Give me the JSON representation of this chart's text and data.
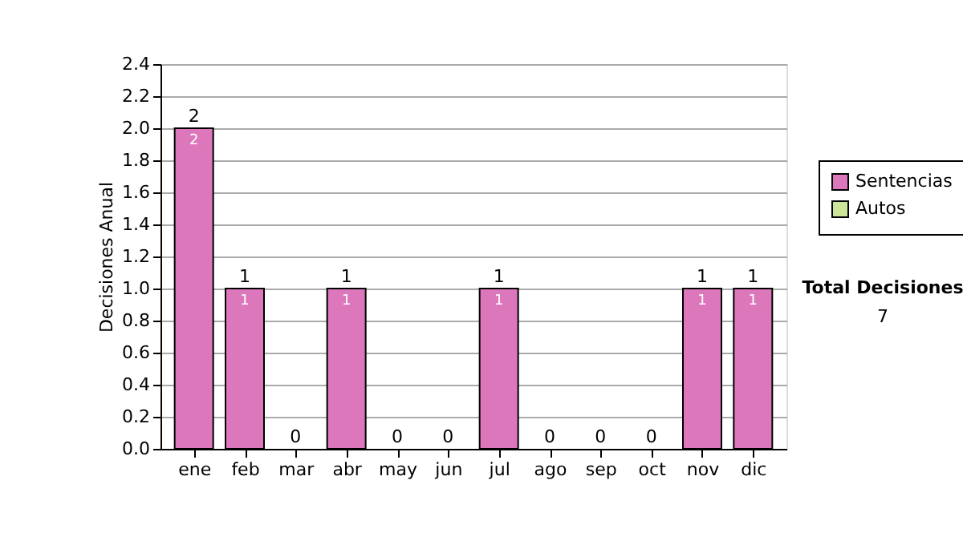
{
  "chart_data": {
    "type": "bar",
    "stacked": true,
    "ylabel": "Decisiones Anual",
    "categories": [
      "ene",
      "feb",
      "mar",
      "abr",
      "may",
      "jun",
      "jul",
      "ago",
      "sep",
      "oct",
      "nov",
      "dic"
    ],
    "series": [
      {
        "name": "Sentencias",
        "color": "#dd77bb",
        "values": [
          2,
          1,
          0,
          1,
          0,
          0,
          1,
          0,
          0,
          0,
          1,
          1
        ],
        "value_labels": [
          "2",
          "1",
          null,
          "1",
          null,
          null,
          "1",
          null,
          null,
          null,
          "1",
          "1"
        ]
      },
      {
        "name": "Autos",
        "color": "#cce699",
        "values": [
          0,
          0,
          0,
          0,
          0,
          0,
          0,
          0,
          0,
          0,
          0,
          0
        ]
      }
    ],
    "totals": [
      "2",
      "1",
      "0",
      "1",
      "0",
      "0",
      "1",
      "0",
      "0",
      "0",
      "1",
      "1"
    ],
    "ylim": [
      0,
      2.4
    ],
    "yticks": [
      {
        "value": 0,
        "label": "0.0"
      },
      {
        "value": 0.2,
        "label": "0.2"
      },
      {
        "value": 0.4,
        "label": "0.4"
      },
      {
        "value": 0.6,
        "label": "0.6"
      },
      {
        "value": 0.8,
        "label": "0.8"
      },
      {
        "value": 1,
        "label": "1.0"
      },
      {
        "value": 1.2,
        "label": "1.2"
      },
      {
        "value": 1.4,
        "label": "1.4"
      },
      {
        "value": 1.6,
        "label": "1.6"
      },
      {
        "value": 1.8,
        "label": "1.8"
      },
      {
        "value": 2,
        "label": "2.0"
      },
      {
        "value": 2.2,
        "label": "2.2"
      },
      {
        "value": 2.4,
        "label": "2.4"
      }
    ],
    "grid": "y",
    "legend": "right",
    "annotations": [
      "Total Decisiones",
      "7"
    ]
  }
}
